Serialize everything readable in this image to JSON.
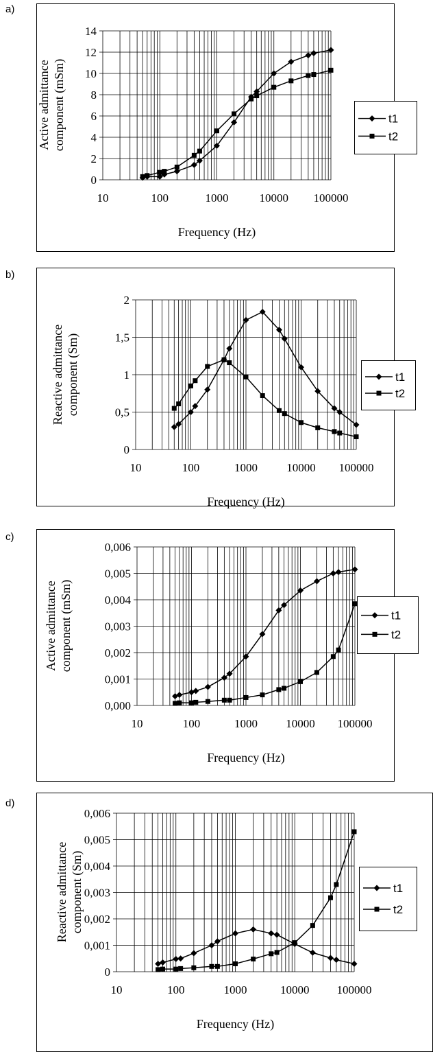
{
  "chart_data": [
    {
      "type": "line",
      "panel_label": "a)",
      "xlabel": "Frequency (Hz)",
      "ylabel": "Active admittance component (mSm)",
      "x_scale": "log",
      "xlim": [
        10,
        100000
      ],
      "xticks": [
        "10",
        "100",
        "1000",
        "10000",
        "100000"
      ],
      "ylim": [
        0,
        14
      ],
      "yticks": [
        "0",
        "2",
        "4",
        "6",
        "8",
        "10",
        "12",
        "14"
      ],
      "grid": true,
      "legend": "right",
      "series": [
        {
          "name": "t1",
          "marker": "diamond",
          "x": [
            50,
            60,
            100,
            120,
            200,
            400,
            500,
            1000,
            2000,
            4000,
            5000,
            10000,
            20000,
            40000,
            50000,
            100000
          ],
          "y": [
            0.2,
            0.3,
            0.3,
            0.5,
            0.8,
            1.4,
            1.8,
            3.2,
            5.4,
            7.8,
            8.3,
            10.0,
            11.1,
            11.7,
            11.9,
            12.2
          ]
        },
        {
          "name": "t2",
          "marker": "square",
          "x": [
            50,
            60,
            100,
            120,
            200,
            400,
            500,
            1000,
            2000,
            4000,
            5000,
            10000,
            20000,
            40000,
            50000,
            100000
          ],
          "y": [
            0.3,
            0.4,
            0.7,
            0.8,
            1.2,
            2.3,
            2.7,
            4.6,
            6.2,
            7.6,
            7.9,
            8.7,
            9.3,
            9.8,
            9.9,
            10.3
          ]
        }
      ]
    },
    {
      "type": "line",
      "panel_label": "b)",
      "xlabel": "Frequency (Hz)",
      "ylabel": "Reactive admittance component (Sm)",
      "x_scale": "log",
      "xlim": [
        10,
        100000
      ],
      "xticks": [
        "10",
        "100",
        "1000",
        "10000",
        "100000"
      ],
      "ylim": [
        0,
        2
      ],
      "yticks": [
        "0",
        "0,5",
        "1",
        "1,5",
        "2"
      ],
      "grid": true,
      "legend": "right",
      "series": [
        {
          "name": "t1",
          "marker": "diamond",
          "x": [
            50,
            60,
            100,
            120,
            200,
            400,
            500,
            1000,
            2000,
            4000,
            5000,
            10000,
            20000,
            40000,
            50000,
            100000
          ],
          "y": [
            0.3,
            0.34,
            0.5,
            0.58,
            0.8,
            1.2,
            1.35,
            1.73,
            1.84,
            1.6,
            1.48,
            1.1,
            0.78,
            0.55,
            0.5,
            0.33
          ]
        },
        {
          "name": "t2",
          "marker": "square",
          "x": [
            50,
            60,
            100,
            120,
            200,
            400,
            500,
            1000,
            2000,
            4000,
            5000,
            10000,
            20000,
            40000,
            50000,
            100000
          ],
          "y": [
            0.55,
            0.61,
            0.85,
            0.92,
            1.11,
            1.2,
            1.16,
            0.97,
            0.72,
            0.52,
            0.48,
            0.36,
            0.29,
            0.24,
            0.22,
            0.17
          ]
        }
      ]
    },
    {
      "type": "line",
      "panel_label": "c)",
      "xlabel": "Frequency (Hz)",
      "ylabel": "Active admittance component (mSm)",
      "x_scale": "log",
      "xlim": [
        10,
        100000
      ],
      "xticks": [
        "10",
        "100",
        "1000",
        "10000",
        "100000"
      ],
      "ylim": [
        0,
        0.006
      ],
      "yticks": [
        "0,000",
        "0,001",
        "0,002",
        "0,003",
        "0,004",
        "0,005",
        "0,006"
      ],
      "grid": true,
      "legend": "right",
      "series": [
        {
          "name": "t1",
          "marker": "diamond",
          "x": [
            50,
            60,
            100,
            120,
            200,
            400,
            500,
            1000,
            2000,
            4000,
            5000,
            10000,
            20000,
            40000,
            50000,
            100000
          ],
          "y": [
            0.00035,
            0.0004,
            0.0005,
            0.00055,
            0.0007,
            0.00105,
            0.0012,
            0.00185,
            0.0027,
            0.0036,
            0.0038,
            0.00435,
            0.0047,
            0.005,
            0.00505,
            0.00515
          ]
        },
        {
          "name": "t2",
          "marker": "square",
          "x": [
            50,
            60,
            100,
            120,
            200,
            400,
            500,
            1000,
            2000,
            4000,
            5000,
            10000,
            20000,
            40000,
            50000,
            100000
          ],
          "y": [
            8e-05,
            0.0001,
            0.0001,
            0.00012,
            0.00015,
            0.0002,
            0.0002,
            0.0003,
            0.0004,
            0.0006,
            0.00065,
            0.0009,
            0.00125,
            0.00185,
            0.0021,
            0.00385
          ]
        }
      ]
    },
    {
      "type": "line",
      "panel_label": "d)",
      "xlabel": "Frequency (Hz)",
      "ylabel": "Reactive admittance component (Sm)",
      "x_scale": "log",
      "xlim": [
        10,
        100000
      ],
      "xticks": [
        "10",
        "100",
        "1000",
        "10000",
        "100000"
      ],
      "ylim": [
        0,
        0.006
      ],
      "yticks": [
        "0",
        "0,001",
        "0,002",
        "0,003",
        "0,004",
        "0,005",
        "0,006"
      ],
      "grid": true,
      "legend": "right",
      "series": [
        {
          "name": "t1",
          "marker": "diamond",
          "x": [
            50,
            60,
            100,
            120,
            200,
            400,
            500,
            1000,
            2000,
            4000,
            5000,
            10000,
            20000,
            40000,
            50000,
            100000
          ],
          "y": [
            0.0003,
            0.00035,
            0.00048,
            0.0005,
            0.0007,
            0.001,
            0.00115,
            0.00145,
            0.0016,
            0.00145,
            0.0014,
            0.00105,
            0.00072,
            0.00052,
            0.00045,
            0.0003
          ]
        },
        {
          "name": "t2",
          "marker": "square",
          "x": [
            50,
            60,
            100,
            120,
            200,
            400,
            500,
            1000,
            2000,
            4000,
            5000,
            10000,
            20000,
            40000,
            50000,
            100000
          ],
          "y": [
            8e-05,
            0.0001,
            0.0001,
            0.00012,
            0.00015,
            0.0002,
            0.0002,
            0.0003,
            0.00048,
            0.00068,
            0.00073,
            0.0011,
            0.00175,
            0.0028,
            0.0033,
            0.0053
          ]
        }
      ]
    }
  ]
}
